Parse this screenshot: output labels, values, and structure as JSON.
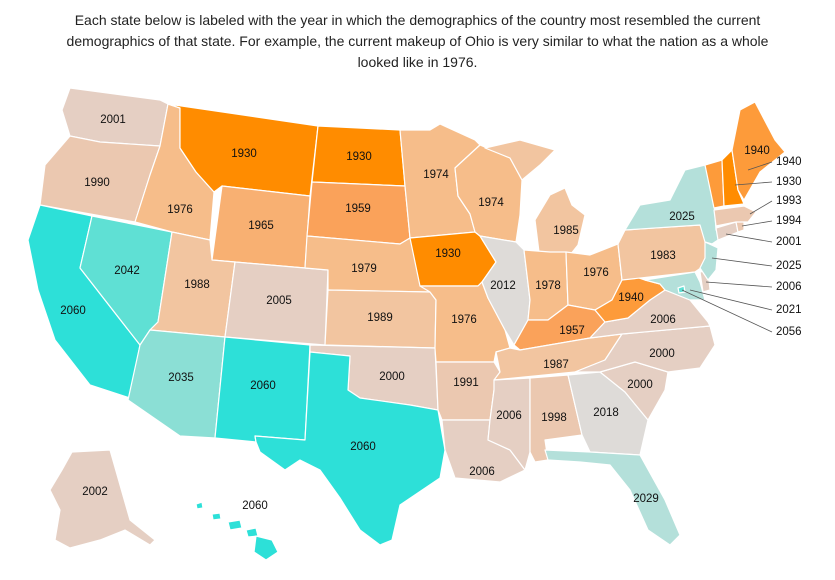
{
  "caption": "Each state below is labeled with the year in which the demographics of the country most resembled the current demographics of that state. For example, the current makeup of Ohio is very similar to what the nation as a whole looked like in 1976.",
  "colors": {
    "y1930": "#ff8c00",
    "y1940s": "#fd9b3a",
    "y1950s": "#faa25a",
    "y1960s": "#f8b072",
    "y1970s": "#f6bd8a",
    "y1980s": "#f2c5a0",
    "y1990s": "#ebc8b0",
    "y2000s": "#e5cfc3",
    "y2010s": "#dedbd8",
    "y2020s": "#b4e0da",
    "y2030s": "#8bdfd5",
    "y2040s": "#5fe0d4",
    "y2060": "#2de0d8"
  },
  "states": {
    "WA": "2001",
    "OR": "1990",
    "CA": "2060",
    "NV": "2042",
    "ID": "1976",
    "MT": "1930",
    "WY": "1965",
    "UT": "1988",
    "AZ": "2035",
    "CO": "2005",
    "NM": "2060",
    "ND": "1930",
    "SD": "1959",
    "NE": "1979",
    "KS": "1989",
    "OK": "2000",
    "TX": "2060",
    "MN": "1974",
    "IA": "1930",
    "MO": "1976",
    "AR": "1991",
    "LA": "2006",
    "WI": "1974",
    "IL": "2012",
    "MI": "1985",
    "IN": "1978",
    "OH": "1976",
    "KY": "1957",
    "TN": "1987",
    "MS": "2006",
    "AL": "1998",
    "GA": "2018",
    "FL": "2029",
    "SC": "2000",
    "NC": "2000",
    "VA": "2006",
    "WV": "1940",
    "PA": "1983",
    "NY": "2025",
    "ME": "1940",
    "AK": "2002",
    "HI": "2060",
    "VT": "1940",
    "NH": "1930",
    "MA": "1993",
    "RI": "1994",
    "CT": "2001",
    "NJ": "2025",
    "DE": "2006",
    "MD": "2021",
    "DC": "2056"
  }
}
